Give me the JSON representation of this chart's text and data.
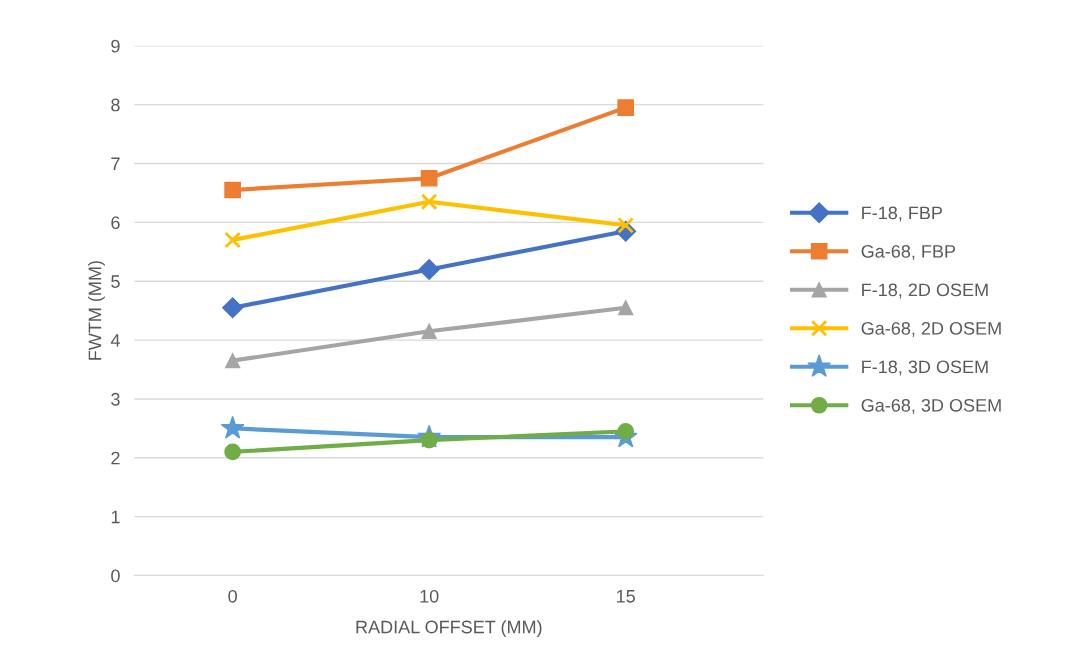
{
  "chart_data": {
    "type": "line",
    "xlabel": "RADIAL OFFSET (MM)",
    "ylabel": "FWTM (MM)",
    "categories": [
      "0",
      "10",
      "15"
    ],
    "series": [
      {
        "name": "F-18, FBP",
        "color": "#4472c4",
        "marker": "diamond",
        "values": [
          4.55,
          5.2,
          5.85
        ]
      },
      {
        "name": "Ga-68, FBP",
        "color": "#ed7d31",
        "marker": "square",
        "values": [
          6.55,
          6.75,
          7.95
        ]
      },
      {
        "name": "F-18, 2D OSEM",
        "color": "#a5a5a5",
        "marker": "triangle",
        "values": [
          3.65,
          4.15,
          4.55
        ]
      },
      {
        "name": "Ga-68, 2D OSEM",
        "color": "#ffc000",
        "marker": "cross",
        "values": [
          5.7,
          6.35,
          5.95
        ]
      },
      {
        "name": "F-18, 3D OSEM",
        "color": "#5b9bd5",
        "marker": "star",
        "values": [
          2.5,
          2.35,
          2.35
        ]
      },
      {
        "name": "Ga-68, 3D OSEM",
        "color": "#70ad47",
        "marker": "circle",
        "values": [
          2.1,
          2.3,
          2.45
        ]
      }
    ],
    "ylim": [
      0,
      9
    ],
    "yticks": [
      0,
      1,
      2,
      3,
      4,
      5,
      6,
      7,
      8,
      9
    ],
    "grid": "y",
    "legend": "right",
    "line_style": "solid"
  }
}
